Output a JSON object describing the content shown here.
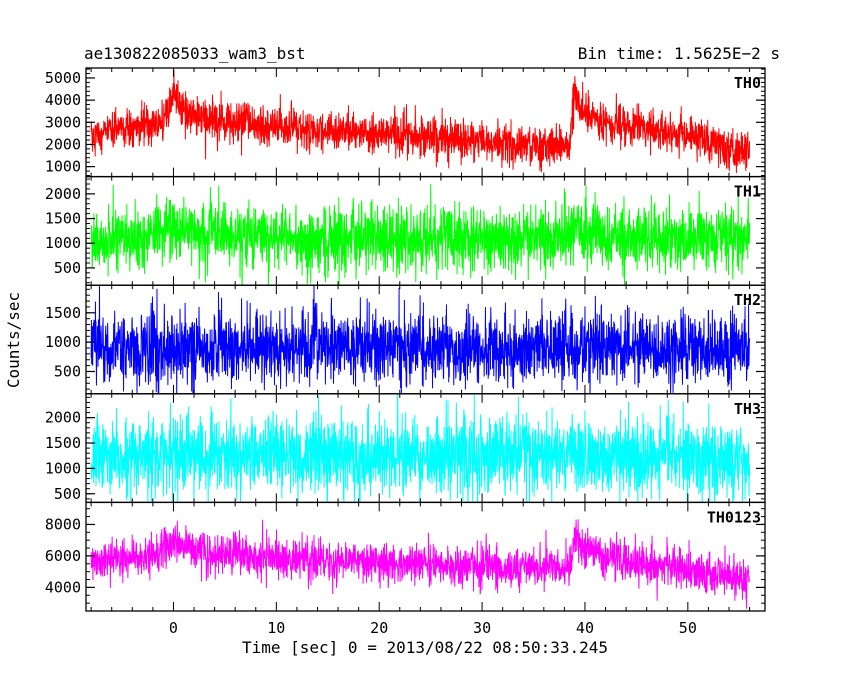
{
  "header": {
    "left_title": "ae130822085033_wam3_bst",
    "right_title": "Bin time: 1.5625E−2 s"
  },
  "chart_data": {
    "type": "line",
    "xlabel": "Time [sec] 0 = 2013/08/22 08:50:33.245",
    "ylabel": "Counts/sec",
    "xlim": [
      -8.5,
      57.5
    ],
    "x_ticks": [
      0,
      10,
      20,
      30,
      40,
      50
    ],
    "x_minor_step": 2,
    "data_range": [
      -8,
      56
    ],
    "grid": false,
    "panels": [
      {
        "name": "TH0",
        "color": "#ff0000",
        "ylim": [
          550,
          5450
        ],
        "y_ticks": [
          1000,
          2000,
          3000,
          4000,
          5000
        ],
        "y_minor_step": 200,
        "profile": [
          [
            -8,
            2400
          ],
          [
            -4,
            2700
          ],
          [
            -1,
            3100
          ],
          [
            0,
            4200
          ],
          [
            0.8,
            3700
          ],
          [
            2,
            3200
          ],
          [
            5,
            3000
          ],
          [
            10,
            2800
          ],
          [
            15,
            2600
          ],
          [
            20,
            2500
          ],
          [
            25,
            2300
          ],
          [
            30,
            2100
          ],
          [
            35,
            2000
          ],
          [
            38.5,
            2050
          ],
          [
            39,
            4500
          ],
          [
            39.6,
            3600
          ],
          [
            42,
            3000
          ],
          [
            46,
            2700
          ],
          [
            50,
            2400
          ],
          [
            53,
            2000
          ],
          [
            56,
            1600
          ]
        ],
        "noise_sigma": 450
      },
      {
        "name": "TH1",
        "color": "#00ff00",
        "ylim": [
          150,
          2350
        ],
        "y_ticks": [
          500,
          1000,
          1500,
          2000
        ],
        "y_minor_step": 100,
        "profile": [
          [
            -8,
            1050
          ],
          [
            -2,
            1150
          ],
          [
            0,
            1300
          ],
          [
            2,
            1250
          ],
          [
            6,
            1150
          ],
          [
            15,
            1100
          ],
          [
            25,
            1100
          ],
          [
            35,
            1100
          ],
          [
            38.5,
            1100
          ],
          [
            39,
            1400
          ],
          [
            40,
            1200
          ],
          [
            45,
            1120
          ],
          [
            56,
            1080
          ]
        ],
        "noise_sigma": 330
      },
      {
        "name": "TH2",
        "color": "#0000ff",
        "ylim": [
          120,
          1970
        ],
        "y_ticks": [
          500,
          1000,
          1500
        ],
        "y_minor_step": 100,
        "profile": [
          [
            -8,
            880
          ],
          [
            0,
            900
          ],
          [
            20,
            900
          ],
          [
            40,
            900
          ],
          [
            56,
            900
          ]
        ],
        "noise_sigma": 300
      },
      {
        "name": "TH3",
        "color": "#00ffff",
        "ylim": [
          330,
          2470
        ],
        "y_ticks": [
          500,
          1000,
          1500,
          2000
        ],
        "y_minor_step": 100,
        "profile": [
          [
            -8,
            1200
          ],
          [
            0,
            1300
          ],
          [
            20,
            1250
          ],
          [
            40,
            1250
          ],
          [
            56,
            1220
          ]
        ],
        "noise_sigma": 390
      },
      {
        "name": "TH0123",
        "color": "#ff00ff",
        "ylim": [
          2500,
          9400
        ],
        "y_ticks": [
          4000,
          6000,
          8000
        ],
        "y_minor_step": 500,
        "profile": [
          [
            -8,
            5600
          ],
          [
            -2,
            6000
          ],
          [
            0,
            7000
          ],
          [
            1,
            6500
          ],
          [
            3,
            6200
          ],
          [
            10,
            5900
          ],
          [
            20,
            5600
          ],
          [
            30,
            5300
          ],
          [
            38.5,
            5100
          ],
          [
            39,
            7200
          ],
          [
            40,
            6300
          ],
          [
            45,
            5500
          ],
          [
            50,
            5100
          ],
          [
            56,
            4400
          ]
        ],
        "noise_sigma": 650
      }
    ]
  }
}
